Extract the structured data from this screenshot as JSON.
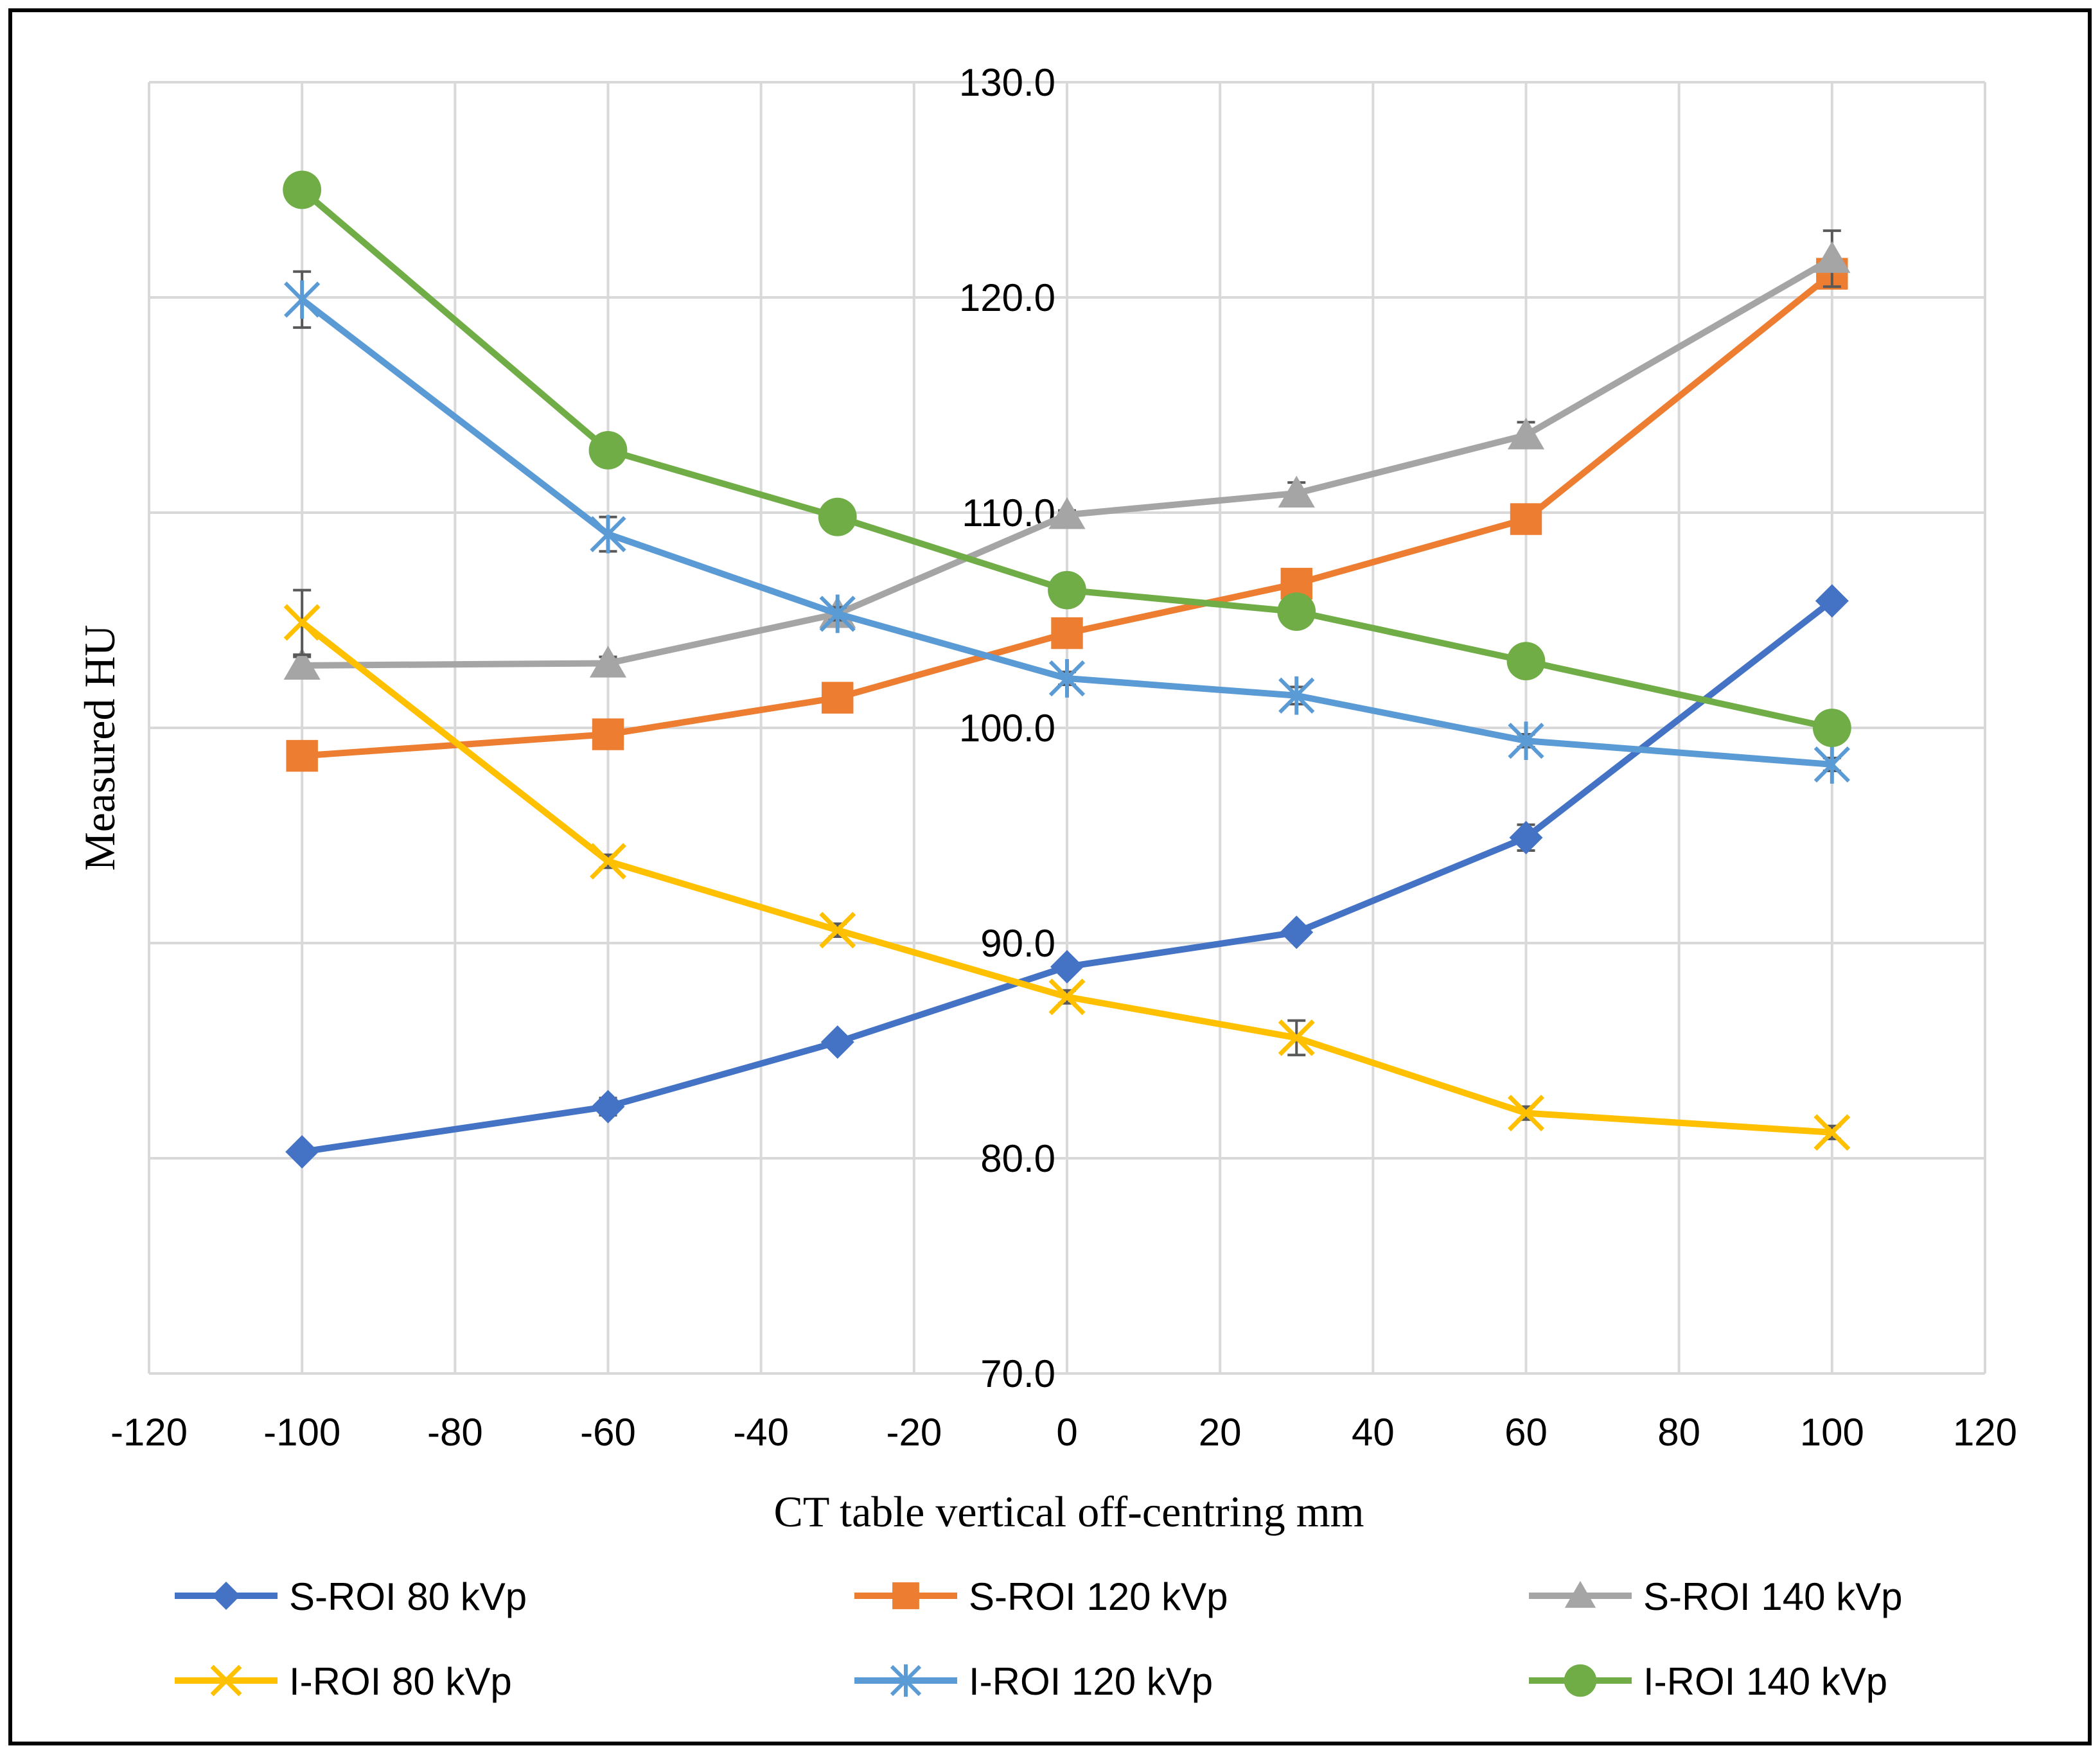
{
  "chart_data": {
    "type": "line",
    "title": "",
    "xlabel": "CT table vertical off-centring mm",
    "ylabel": "Measured HU",
    "xlim": [
      -120,
      120
    ],
    "ylim": [
      70.0,
      130.0
    ],
    "x_ticks": [
      -120,
      -100,
      -80,
      -60,
      -40,
      -20,
      0,
      20,
      40,
      60,
      80,
      100,
      120
    ],
    "y_ticks": [
      70.0,
      80.0,
      90.0,
      100.0,
      110.0,
      120.0,
      130.0
    ],
    "grid": true,
    "legend_position": "bottom",
    "x": [
      -100,
      -60,
      -30,
      0,
      30,
      60,
      100
    ],
    "series": [
      {
        "name": "S-ROI 80 kVp",
        "color": "#4472C4",
        "marker": "diamond",
        "values": [
          80.3,
          82.4,
          85.4,
          88.9,
          90.5,
          94.9,
          105.9
        ],
        "error": [
          0.2,
          0.4,
          0.3,
          0.3,
          0.3,
          0.6,
          0.3
        ]
      },
      {
        "name": "S-ROI 120 kVp",
        "color": "#ED7D31",
        "marker": "square",
        "values": [
          98.7,
          99.7,
          101.4,
          104.4,
          106.7,
          109.7,
          121.1
        ],
        "error": [
          0.2,
          0.2,
          0.2,
          0.2,
          0.3,
          0.3,
          0.3
        ]
      },
      {
        "name": "S-ROI 140 kVp",
        "color": "#A5A5A5",
        "marker": "triangle",
        "values": [
          102.9,
          103.0,
          105.3,
          109.9,
          110.9,
          113.6,
          121.8
        ],
        "error": [
          0.4,
          0.3,
          0.3,
          0.2,
          0.5,
          0.6,
          1.3
        ]
      },
      {
        "name": "I-ROI 80 kVp",
        "color": "#FFC000",
        "marker": "x",
        "values": [
          104.9,
          93.8,
          90.6,
          87.5,
          85.6,
          82.1,
          81.2
        ],
        "error": [
          1.5,
          0.3,
          0.3,
          0.3,
          0.8,
          0.3,
          0.3
        ]
      },
      {
        "name": "I-ROI 120 kVp",
        "color": "#5B9BD5",
        "marker": "star",
        "values": [
          119.9,
          109.0,
          105.3,
          102.3,
          101.5,
          99.4,
          98.3
        ],
        "error": [
          1.3,
          0.8,
          0.3,
          0.3,
          0.4,
          0.3,
          0.3
        ]
      },
      {
        "name": "I-ROI 140 kVp",
        "color": "#70AD47",
        "marker": "circle",
        "values": [
          125.0,
          112.9,
          109.8,
          106.4,
          105.4,
          103.1,
          100.0
        ],
        "error": [
          0.2,
          0.2,
          0.2,
          0.2,
          0.2,
          0.2,
          0.2
        ]
      }
    ]
  }
}
